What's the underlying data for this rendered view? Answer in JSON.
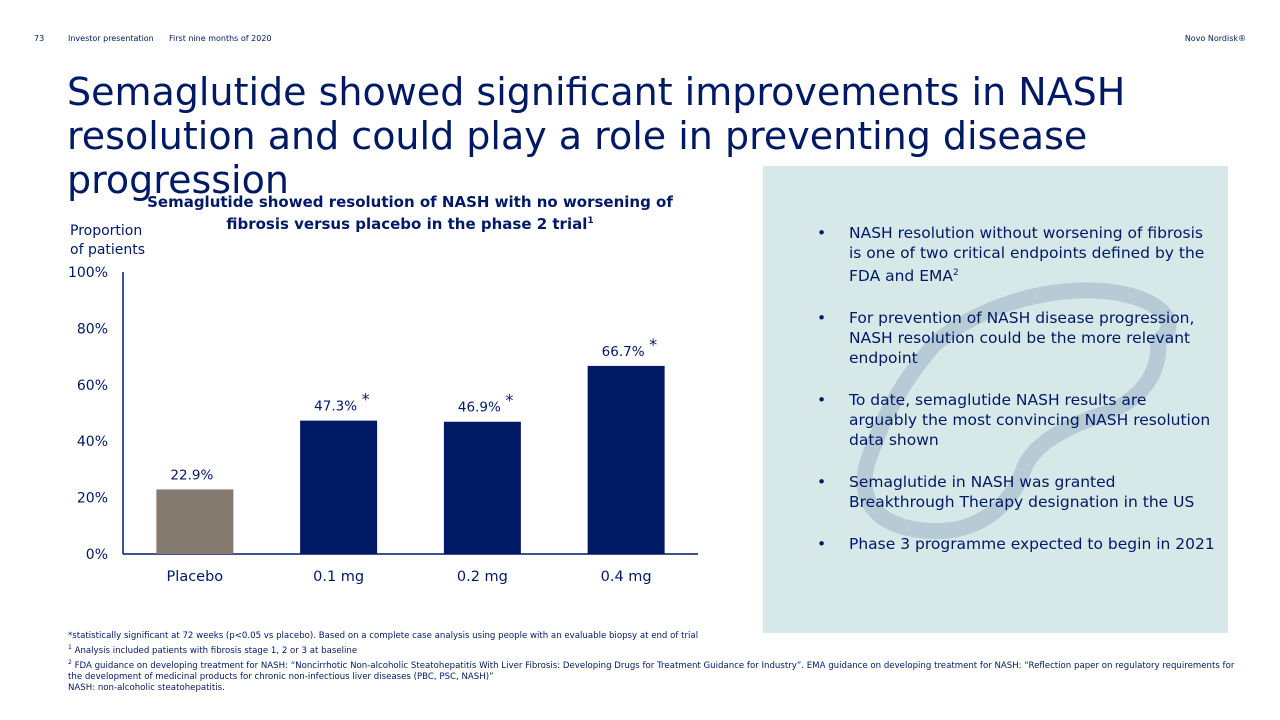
{
  "header": {
    "page_number": "73",
    "presentation": "Investor presentation",
    "period": "First nine months of 2020",
    "brand": "Novo Nordisk®"
  },
  "title": "Semaglutide showed significant improvements in NASH resolution and could play a role in preventing disease progression",
  "chart_title": {
    "text": "Semaglutide showed resolution of NASH with no worsening of fibrosis versus placebo in the phase 2 trial",
    "footnote_mark": "1"
  },
  "colors": {
    "navy": "#001965",
    "placebo": "#857a70",
    "panel": "#d6e8e8",
    "apis_outline": "#b6cbd6"
  },
  "chart_data": {
    "type": "bar",
    "title": "Semaglutide showed resolution of NASH with no worsening of fibrosis versus placebo in the phase 2 trial",
    "ylabel": "Proportion of patients",
    "xlabel": "",
    "ylim": [
      0,
      100
    ],
    "yticks": [
      "0%",
      "20%",
      "40%",
      "60%",
      "80%",
      "100%"
    ],
    "categories": [
      "Placebo",
      "0.1 mg",
      "0.2 mg",
      "0.4 mg"
    ],
    "values": [
      22.9,
      47.3,
      46.9,
      66.7
    ],
    "labels": [
      "22.9%",
      "47.3%",
      "46.9%",
      "66.7%"
    ],
    "significant": [
      false,
      true,
      true,
      true
    ],
    "significance_mark": "*"
  },
  "bullets": [
    {
      "text": "NASH resolution without worsening of fibrosis is one of two critical endpoints defined by the FDA and EMA",
      "sup": "2"
    },
    {
      "text": "For prevention of NASH disease progression, NASH resolution could be the more relevant endpoint",
      "sup": ""
    },
    {
      "text": "To date, semaglutide NASH results are arguably the most convincing NASH resolution data shown",
      "sup": ""
    },
    {
      "text": "Semaglutide in NASH was granted Breakthrough Therapy designation in the US",
      "sup": ""
    },
    {
      "text": "Phase 3 programme expected to begin in 2021",
      "sup": ""
    }
  ],
  "bullet_symbol": "•",
  "footnotes": {
    "stat_note": "*statistically significant at 72 weeks (p<0.05 vs placebo). Based on a complete case analysis using people with an evaluable biopsy at end of trial",
    "note1_mark": "1",
    "note1": "Analysis included patients with fibrosis stage 1, 2 or 3 at baseline",
    "note2_mark": "2",
    "note2": "FDA guidance on developing treatment for NASH: “Noncirrhotic Non-alcoholic Steatohepatitis With Liver Fibrosis: Developing Drugs for Treatment Guidance for Industry”. EMA guidance on developing treatment for NASH: “Reflection paper on regulatory requirements for the development of medicinal products for chronic non-infectious liver diseases (PBC, PSC, NASH)”",
    "abbreviation": "NASH: non-alcoholic steatohepatitis."
  }
}
